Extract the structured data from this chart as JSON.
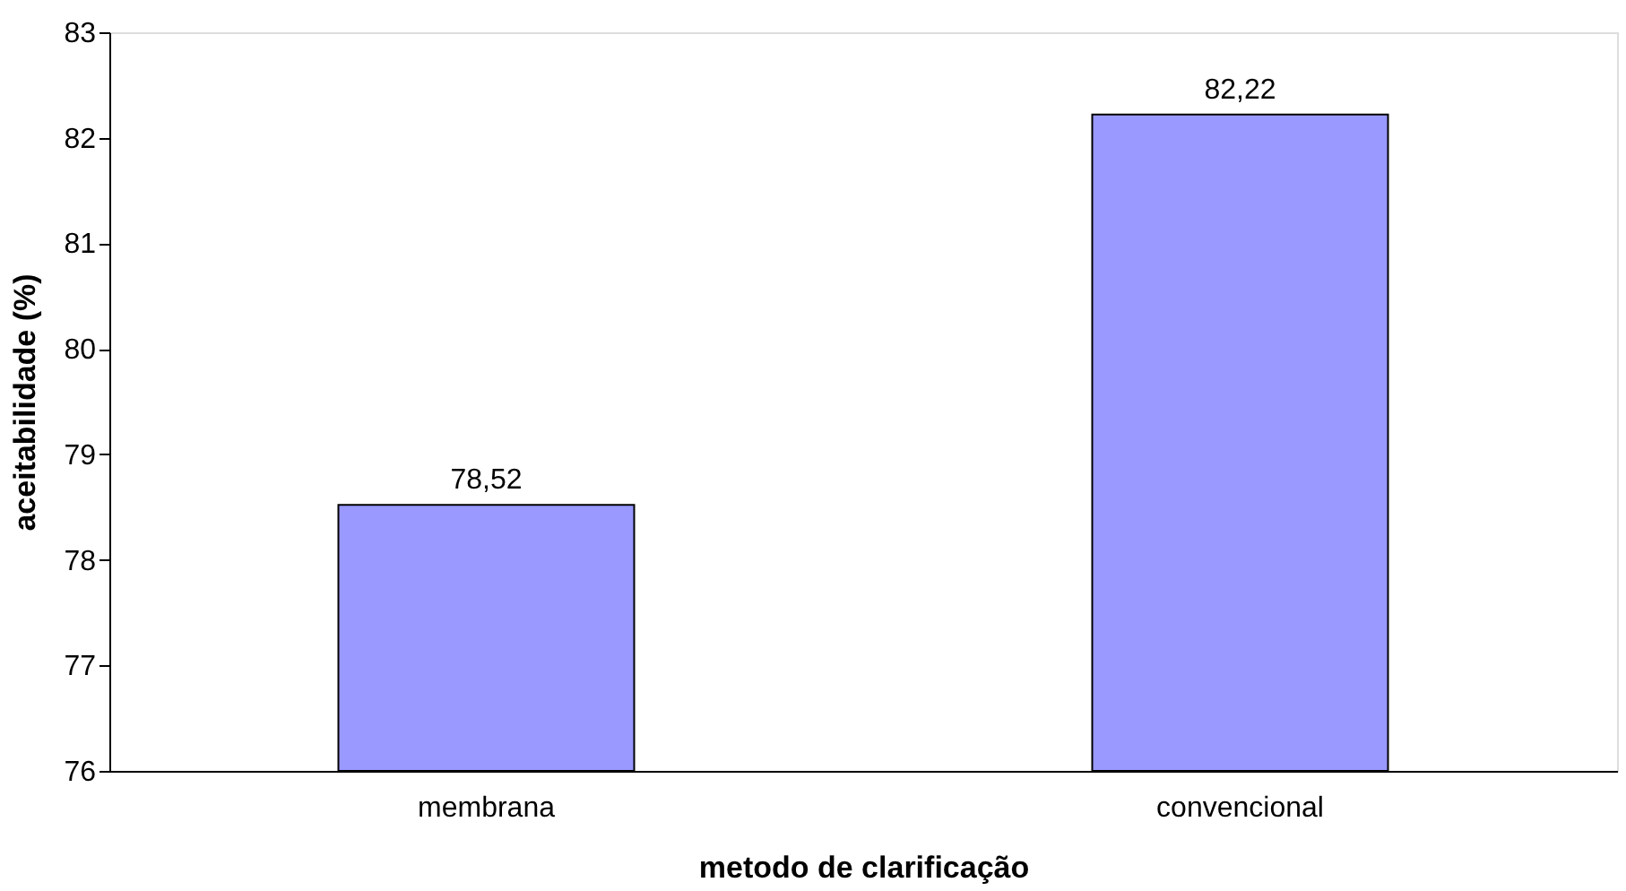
{
  "chart_data": {
    "type": "bar",
    "xlabel": "metodo de clarificação",
    "ylabel": "aceitabilidade (%)",
    "categories": [
      "membrana",
      "convencional"
    ],
    "values": [
      78.52,
      82.22
    ],
    "value_labels": [
      "78,52",
      "82,22"
    ],
    "color": "#9999ff",
    "ylim": [
      76,
      83
    ],
    "yticks": [
      76,
      77,
      78,
      79,
      80,
      81,
      82,
      83
    ],
    "grid": false
  }
}
